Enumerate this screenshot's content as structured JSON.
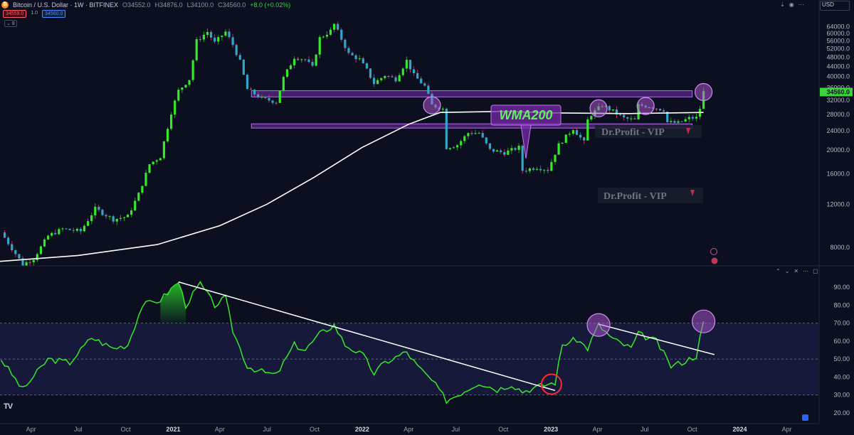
{
  "header": {
    "symbol_title": "Bitcoin / U.S. Dollar · 1W · BITFINEX",
    "open": "O34552.0",
    "high": "H34876.0",
    "low": "L34100.0",
    "close": "C34560.0",
    "change": "+8.0 (+0.02%)",
    "bid": "34559.0",
    "spread": "1.0",
    "ask": "34560.0",
    "indicator_count": "8",
    "currency": "USD"
  },
  "icons": [
    "bitcoin-icon",
    "arrow-down-icon",
    "eye-icon",
    "chevron-down-icon",
    "more-icon",
    "chevron-up-icon",
    "maximize-icon",
    "close-icon",
    "lightning-icon",
    "flag-icon"
  ],
  "colors": {
    "background": "#0b0f1f",
    "candle_up": "#36e82a",
    "candle_down": "#2fa8c8",
    "wma_line": "#ffffff",
    "zone": "#8a35c8",
    "rsi_line": "#36e82a",
    "circle": "#b45ad8",
    "red_circle": "#ff2a2a",
    "price_label": "#3ad43a"
  },
  "annotations": {
    "wma_label": "WMA200",
    "watermark_top": "Dr.Profit - VIP",
    "watermark_bottom": "Dr.Profit - VIP"
  },
  "chart_data": [
    {
      "type": "candlestick",
      "title": "Bitcoin / U.S. Dollar · 1W · BITFINEX",
      "y_scale": "log",
      "ylim": [
        6800,
        72000
      ],
      "y_ticks": [
        "64000.0",
        "60000.0",
        "56000.0",
        "52000.0",
        "48000.0",
        "44000.0",
        "40000.0",
        "36000.0",
        "32000.0",
        "28000.0",
        "24000.0",
        "20000.0",
        "16000.0",
        "12000.0",
        "8000.0"
      ],
      "y_tick_values": [
        64000,
        60000,
        56000,
        52000,
        48000,
        44000,
        40000,
        36000,
        32000,
        28000,
        24000,
        20000,
        16000,
        12000,
        8000
      ],
      "last_price_label": "34560.0",
      "last_price": 34560,
      "x_labels": [
        "Apr",
        "Jul",
        "Oct",
        "2021",
        "Apr",
        "Jul",
        "Oct",
        "2022",
        "Apr",
        "Jul",
        "Oct",
        "2023",
        "Apr",
        "Jul",
        "Oct",
        "2024",
        "Apr"
      ],
      "x_label_dates": [
        "2020-04",
        "2020-07",
        "2020-10",
        "2021-01",
        "2021-04",
        "2021-07",
        "2021-10",
        "2022-01",
        "2022-04",
        "2022-07",
        "2022-10",
        "2023-01",
        "2023-04",
        "2023-07",
        "2023-10",
        "2024-01",
        "2024-04"
      ],
      "x_range": [
        "2020-02",
        "2024-06"
      ],
      "close_path": [
        [
          "2020-02-03",
          9200
        ],
        [
          "2020-03-16",
          6800
        ],
        [
          "2020-04-06",
          7200
        ],
        [
          "2020-05-04",
          8900
        ],
        [
          "2020-06-01",
          9500
        ],
        [
          "2020-07-06",
          9300
        ],
        [
          "2020-08-03",
          11500
        ],
        [
          "2020-09-07",
          10400
        ],
        [
          "2020-10-05",
          10700
        ],
        [
          "2020-10-26",
          13200
        ],
        [
          "2020-11-16",
          17500
        ],
        [
          "2020-12-07",
          18800
        ],
        [
          "2020-12-28",
          28500
        ],
        [
          "2021-01-11",
          35000
        ],
        [
          "2021-02-01",
          39000
        ],
        [
          "2021-02-15",
          56000
        ],
        [
          "2021-03-08",
          61000
        ],
        [
          "2021-03-22",
          55000
        ],
        [
          "2021-04-12",
          61000
        ],
        [
          "2021-04-26",
          54000
        ],
        [
          "2021-05-10",
          46000
        ],
        [
          "2021-05-24",
          35500
        ],
        [
          "2021-06-21",
          32500
        ],
        [
          "2021-07-19",
          31500
        ],
        [
          "2021-08-02",
          39500
        ],
        [
          "2021-08-23",
          48000
        ],
        [
          "2021-09-13",
          47000
        ],
        [
          "2021-09-27",
          43500
        ],
        [
          "2021-10-11",
          57500
        ],
        [
          "2021-11-01",
          61500
        ],
        [
          "2021-11-08",
          65500
        ],
        [
          "2021-11-22",
          57000
        ],
        [
          "2021-12-06",
          49500
        ],
        [
          "2021-12-27",
          47000
        ],
        [
          "2022-01-10",
          42500
        ],
        [
          "2022-01-24",
          37500
        ],
        [
          "2022-02-14",
          40500
        ],
        [
          "2022-03-07",
          39000
        ],
        [
          "2022-03-28",
          46500
        ],
        [
          "2022-04-11",
          40500
        ],
        [
          "2022-05-02",
          36500
        ],
        [
          "2022-05-16",
          30500
        ],
        [
          "2022-06-06",
          29500
        ],
        [
          "2022-06-13",
          20500
        ],
        [
          "2022-07-04",
          21000
        ],
        [
          "2022-07-25",
          23500
        ],
        [
          "2022-08-15",
          23500
        ],
        [
          "2022-09-05",
          20000
        ],
        [
          "2022-10-03",
          19500
        ],
        [
          "2022-10-31",
          20500
        ],
        [
          "2022-11-07",
          16500
        ],
        [
          "2022-12-05",
          17000
        ],
        [
          "2022-12-26",
          16600
        ],
        [
          "2023-01-16",
          21000
        ],
        [
          "2023-02-13",
          24500
        ],
        [
          "2023-03-06",
          21500
        ],
        [
          "2023-03-13",
          26500
        ],
        [
          "2023-03-20",
          28000
        ],
        [
          "2023-04-10",
          30500
        ],
        [
          "2023-05-01",
          28800
        ],
        [
          "2023-05-22",
          27000
        ],
        [
          "2023-06-12",
          26500
        ],
        [
          "2023-06-19",
          30500
        ],
        [
          "2023-07-10",
          30200
        ],
        [
          "2023-08-07",
          29200
        ],
        [
          "2023-08-14",
          26000
        ],
        [
          "2023-09-04",
          25800
        ],
        [
          "2023-09-25",
          27000
        ],
        [
          "2023-10-09",
          27100
        ],
        [
          "2023-10-16",
          29600
        ],
        [
          "2023-10-23",
          34560
        ]
      ],
      "wma200_path": [
        [
          "2020-02-01",
          7000
        ],
        [
          "2020-07-01",
          7400
        ],
        [
          "2020-12-01",
          8200
        ],
        [
          "2021-04-01",
          9800
        ],
        [
          "2021-07-01",
          12000
        ],
        [
          "2021-10-01",
          15500
        ],
        [
          "2022-01-01",
          20500
        ],
        [
          "2022-04-01",
          25500
        ],
        [
          "2022-06-01",
          28500
        ],
        [
          "2022-10-01",
          28800
        ],
        [
          "2023-01-01",
          28400
        ],
        [
          "2023-06-01",
          28200
        ],
        [
          "2023-10-23",
          28500
        ]
      ],
      "zones": [
        {
          "from": "2021-06",
          "to": "2023-10",
          "low": 33000,
          "high": 35000
        },
        {
          "from": "2021-06",
          "to": "2023-10",
          "low": 24600,
          "high": 25600
        }
      ],
      "highlight_dates": [
        "2022-05-16",
        "2023-04-03",
        "2023-07-03",
        "2023-10-23"
      ]
    },
    {
      "type": "line",
      "indicator": "RSI",
      "ylim": [
        18,
        98
      ],
      "y_ticks": [
        "90.00",
        "80.00",
        "70.00",
        "60.00",
        "50.00",
        "40.00",
        "30.00",
        "20.00"
      ],
      "y_tick_values": [
        90,
        80,
        70,
        60,
        50,
        40,
        30,
        20
      ],
      "band": [
        30,
        70
      ],
      "rsi_path": [
        [
          "2020-02-03",
          50
        ],
        [
          "2020-03-16",
          33
        ],
        [
          "2020-05-04",
          50
        ],
        [
          "2020-06-15",
          48
        ],
        [
          "2020-07-27",
          62
        ],
        [
          "2020-09-07",
          56
        ],
        [
          "2020-10-05",
          58
        ],
        [
          "2020-11-02",
          80
        ],
        [
          "2020-12-07",
          83
        ],
        [
          "2021-01-11",
          93
        ],
        [
          "2021-01-25",
          80
        ],
        [
          "2021-02-22",
          92
        ],
        [
          "2021-03-22",
          80
        ],
        [
          "2021-04-12",
          84
        ],
        [
          "2021-04-26",
          66
        ],
        [
          "2021-05-24",
          46
        ],
        [
          "2021-06-21",
          43
        ],
        [
          "2021-07-19",
          41
        ],
        [
          "2021-08-23",
          58
        ],
        [
          "2021-09-13",
          55
        ],
        [
          "2021-10-11",
          64
        ],
        [
          "2021-11-08",
          69
        ],
        [
          "2021-11-29",
          58
        ],
        [
          "2022-01-03",
          52
        ],
        [
          "2022-01-24",
          42
        ],
        [
          "2022-02-14",
          48
        ],
        [
          "2022-03-28",
          54
        ],
        [
          "2022-04-18",
          46
        ],
        [
          "2022-05-16",
          38
        ],
        [
          "2022-06-13",
          27
        ],
        [
          "2022-07-04",
          30
        ],
        [
          "2022-08-15",
          37
        ],
        [
          "2022-09-19",
          33
        ],
        [
          "2022-10-17",
          36
        ],
        [
          "2022-11-07",
          32
        ],
        [
          "2022-12-12",
          35
        ],
        [
          "2023-01-09",
          37
        ],
        [
          "2023-01-23",
          58
        ],
        [
          "2023-02-20",
          61
        ],
        [
          "2023-03-13",
          56
        ],
        [
          "2023-04-03",
          69
        ],
        [
          "2023-05-01",
          61
        ],
        [
          "2023-06-05",
          56
        ],
        [
          "2023-06-19",
          64
        ],
        [
          "2023-07-24",
          60
        ],
        [
          "2023-08-21",
          46
        ],
        [
          "2023-09-18",
          49
        ],
        [
          "2023-10-09",
          52
        ],
        [
          "2023-10-23",
          71
        ]
      ],
      "trendlines": [
        {
          "from": [
            "2021-01-11",
            93
          ],
          "to": [
            "2023-01-09",
            32.5
          ]
        },
        {
          "from": [
            "2023-04-03",
            69.5
          ],
          "to": [
            "2023-11-13",
            52.5
          ]
        }
      ],
      "circles": [
        [
          "2023-04-03",
          69
        ],
        [
          "2023-10-23",
          71
        ]
      ],
      "red_circle": [
        "2023-01-02",
        36
      ]
    }
  ]
}
